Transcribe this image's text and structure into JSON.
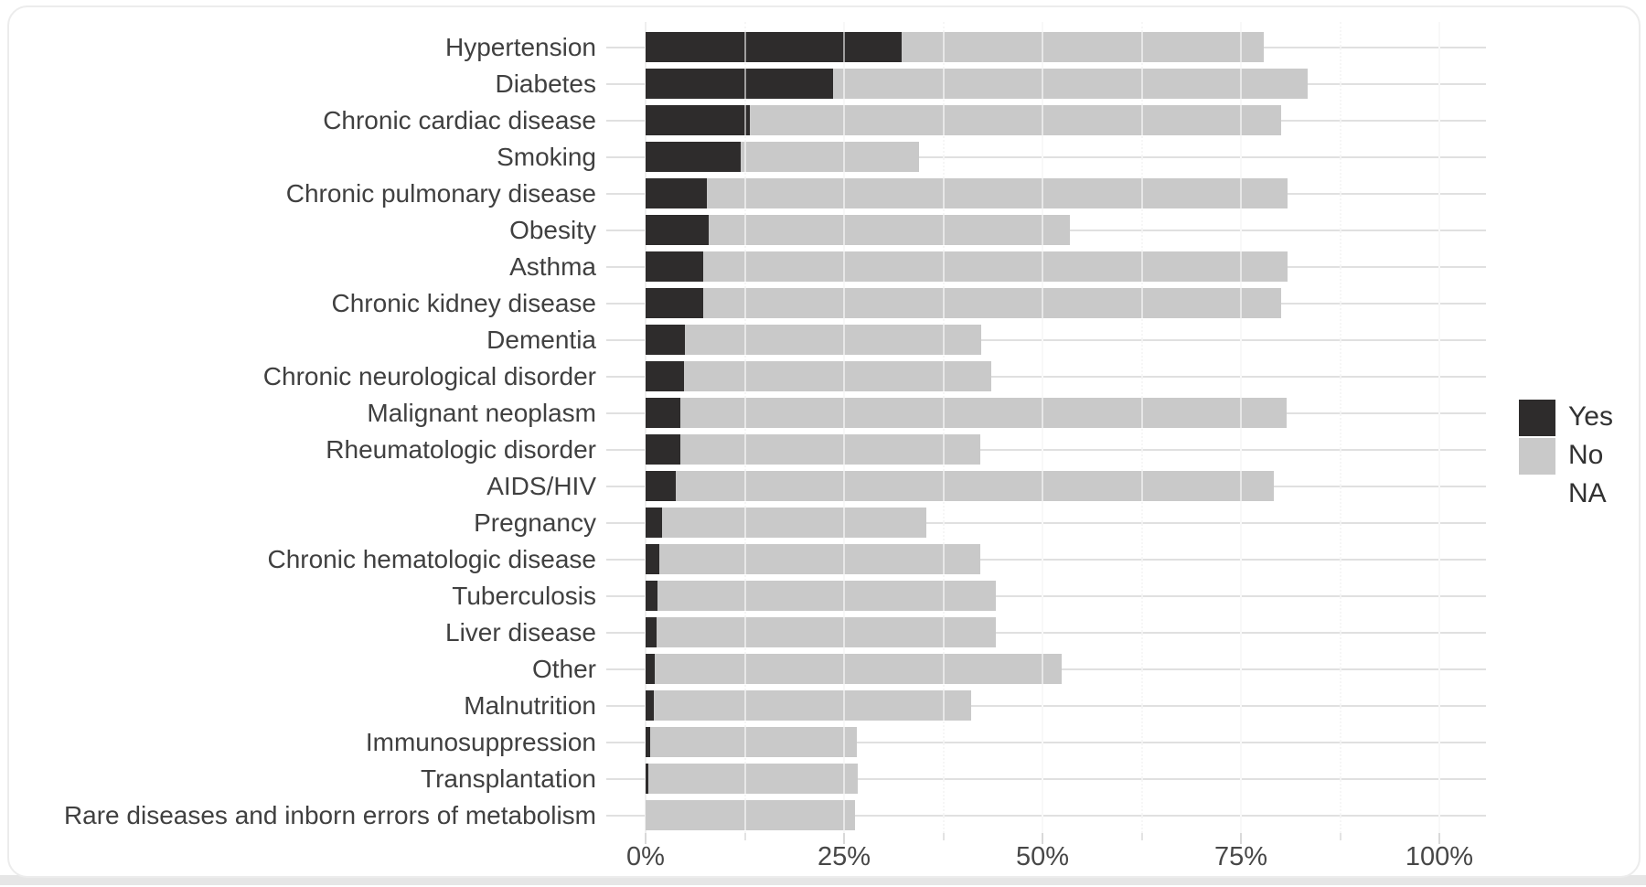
{
  "chart_data": {
    "type": "bar",
    "orientation": "horizontal-stacked",
    "unit": "%",
    "title": "",
    "xlabel": "",
    "ylabel": "",
    "xlim": [
      0,
      100
    ],
    "grid": true,
    "categories": [
      "Hypertension",
      "Diabetes",
      "Chronic cardiac disease",
      "Smoking",
      "Chronic pulmonary disease",
      "Obesity",
      "Asthma",
      "Chronic kidney disease",
      "Dementia",
      "Chronic neurological disorder",
      "Malignant neoplasm",
      "Rheumatologic disorder",
      "AIDS/HIV",
      "Pregnancy",
      "Chronic hematologic disease",
      "Tuberculosis",
      "Liver disease",
      "Other",
      "Malnutrition",
      "Immunosuppression",
      "Transplantation",
      "Rare diseases and inborn errors of metabolism"
    ],
    "series": [
      {
        "name": "Yes",
        "color": "#2e2c2c",
        "values": [
          32.3,
          23.6,
          13.1,
          12.0,
          7.7,
          7.9,
          7.3,
          7.3,
          4.9,
          4.8,
          4.4,
          4.4,
          3.8,
          2.1,
          1.7,
          1.5,
          1.4,
          1.2,
          1.0,
          0.6,
          0.3,
          0.0
        ]
      },
      {
        "name": "No",
        "color": "#c9c9c9",
        "values": [
          45.6,
          59.8,
          67.0,
          22.5,
          73.2,
          45.6,
          73.6,
          72.8,
          37.4,
          38.7,
          76.4,
          37.8,
          75.4,
          33.3,
          40.5,
          42.6,
          42.7,
          51.2,
          40.0,
          26.0,
          26.4,
          26.4
        ]
      },
      {
        "name": "NA",
        "color": "#ffffff",
        "values": [
          22.1,
          16.6,
          19.9,
          65.5,
          19.1,
          46.5,
          19.1,
          19.9,
          57.7,
          56.5,
          19.2,
          57.8,
          20.8,
          64.6,
          57.8,
          55.9,
          55.9,
          47.6,
          59.0,
          73.4,
          73.3,
          73.6
        ]
      }
    ],
    "x_ticks": {
      "major": [
        0,
        25,
        50,
        75,
        100
      ],
      "minor": [
        12.5,
        37.5,
        62.5,
        87.5
      ],
      "labels": [
        "0%",
        "25%",
        "50%",
        "75%",
        "100%"
      ]
    },
    "legend": {
      "position": "right",
      "items": [
        {
          "label": "Yes",
          "color": "#2e2c2c"
        },
        {
          "label": "No",
          "color": "#c9c9c9"
        },
        {
          "label": "NA",
          "color": "#ffffff"
        }
      ]
    }
  }
}
